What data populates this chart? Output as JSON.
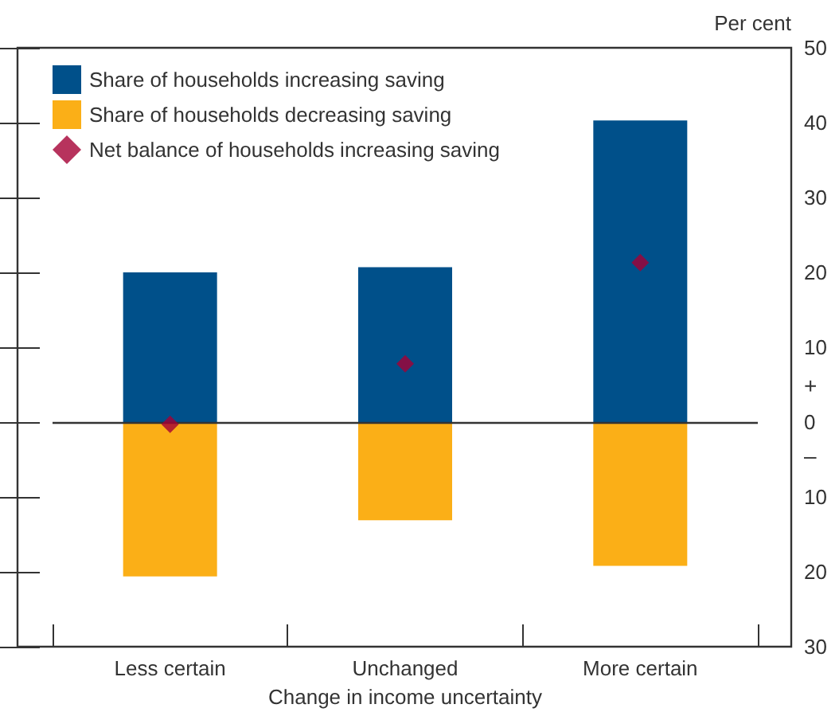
{
  "chart_data": {
    "type": "bar",
    "stacked": true,
    "categories": [
      "Less certain",
      "Unchanged",
      "More certain"
    ],
    "series": [
      {
        "name": "Share of households increasing saving",
        "color": "#00508a",
        "values": [
          20,
          20.7,
          40.3
        ]
      },
      {
        "name": "Share of households decreasing saving",
        "color": "#fbaf17",
        "values": [
          -20.6,
          -13.1,
          -19.2
        ]
      },
      {
        "name": "Net balance of households increasing saving",
        "type": "scatter",
        "marker": "diamond",
        "color": "#a50034",
        "values": [
          -0.3,
          7.8,
          21.3
        ]
      }
    ],
    "ylabel": "Per cent",
    "xlabel": "Change in income uncertainty",
    "ylim": [
      -30,
      50
    ],
    "yticks": [
      {
        "value": -30,
        "label": "30"
      },
      {
        "value": -20,
        "label": "20"
      },
      {
        "value": -10,
        "label": "10"
      },
      0,
      10,
      20,
      30,
      40,
      50
    ],
    "ref_lines": [
      {
        "axis": "y",
        "value": 0,
        "color": "#333333"
      }
    ],
    "annotations": [
      "+",
      "–"
    ],
    "legend": "top left",
    "grid": false
  }
}
